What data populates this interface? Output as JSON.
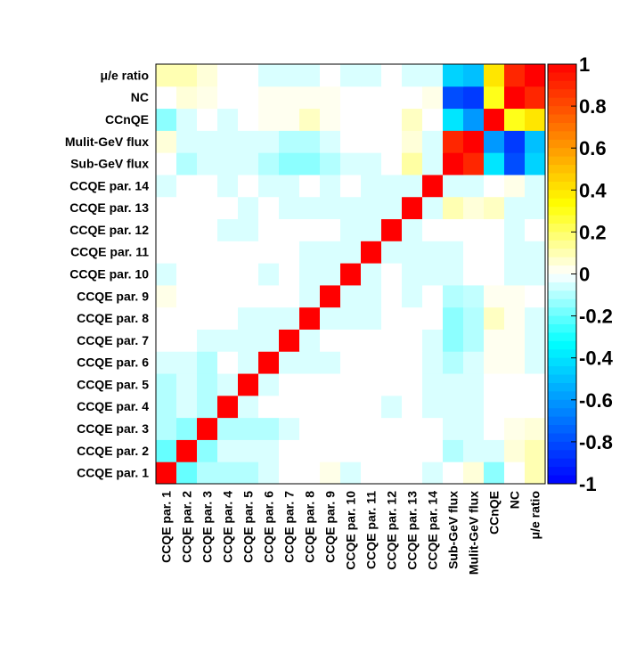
{
  "chart_data": {
    "type": "heatmap",
    "labels": [
      "CCQE par. 1",
      "CCQE par. 2",
      "CCQE par. 3",
      "CCQE par. 4",
      "CCQE par. 5",
      "CCQE par. 6",
      "CCQE par. 7",
      "CCQE par. 8",
      "CCQE par. 9",
      "CCQE par. 10",
      "CCQE par. 11",
      "CCQE par. 12",
      "CCQE par. 13",
      "CCQE par. 14",
      "Sub-GeV flux",
      "Mulit-GeV flux",
      "CCnQE",
      "NC",
      "μ/e ratio"
    ],
    "zlim": [
      -1,
      1
    ],
    "colorbar_ticks": [
      "1",
      "0.8",
      "0.6",
      "0.4",
      "0.2",
      "0",
      "-0.2",
      "-0.4",
      "-0.6",
      "-0.8",
      "-1"
    ],
    "colorscale": [
      "#0000ff",
      "#0080ff",
      "#00ffff",
      "#ffffff",
      "#ffff00",
      "#ff8000",
      "#ff0000"
    ],
    "matrix": [
      [
        1.0,
        -0.2,
        -0.1,
        -0.1,
        -0.1,
        -0.05,
        0,
        0,
        0.03,
        -0.05,
        0,
        0,
        0,
        -0.05,
        0,
        0.05,
        -0.15,
        0,
        0.1
      ],
      [
        -0.2,
        1.0,
        -0.15,
        -0.05,
        -0.05,
        -0.05,
        0,
        0,
        0,
        0,
        0,
        0,
        0,
        0,
        -0.1,
        -0.05,
        -0.05,
        0.05,
        0.1
      ],
      [
        -0.1,
        -0.15,
        1.0,
        -0.1,
        -0.1,
        -0.1,
        -0.05,
        0,
        0,
        0,
        0,
        0,
        0,
        0,
        -0.05,
        -0.05,
        0,
        0.03,
        0.05
      ],
      [
        -0.1,
        -0.05,
        -0.1,
        1.0,
        -0.05,
        0,
        0,
        0,
        0,
        0,
        0,
        -0.05,
        0,
        -0.05,
        -0.05,
        -0.05,
        0,
        0,
        0
      ],
      [
        -0.1,
        -0.05,
        -0.1,
        -0.05,
        1.0,
        -0.05,
        0,
        0,
        0,
        0,
        0,
        0,
        0,
        -0.05,
        -0.05,
        -0.05,
        0,
        0,
        0
      ],
      [
        -0.05,
        -0.05,
        -0.1,
        0,
        -0.05,
        1.0,
        -0.05,
        -0.05,
        -0.05,
        0,
        0,
        0,
        0,
        -0.05,
        -0.1,
        -0.05,
        0.02,
        0.02,
        -0.05
      ],
      [
        0,
        0,
        -0.05,
        -0.05,
        -0.05,
        -0.05,
        1.0,
        -0.05,
        0,
        0,
        0,
        0,
        0,
        -0.05,
        -0.15,
        -0.1,
        0.02,
        0.02,
        -0.05
      ],
      [
        0,
        0,
        0,
        0,
        -0.05,
        -0.05,
        -0.05,
        1.0,
        -0.05,
        -0.05,
        -0.05,
        0,
        0,
        0,
        -0.15,
        -0.1,
        0.08,
        0.02,
        -0.05
      ],
      [
        0.03,
        0,
        0,
        0,
        0,
        0,
        0,
        -0.05,
        1.0,
        -0.05,
        -0.05,
        0,
        -0.05,
        0,
        -0.1,
        -0.08,
        0.02,
        0.02,
        0
      ],
      [
        -0.05,
        0,
        0,
        0,
        0,
        -0.05,
        0,
        -0.05,
        -0.05,
        1.0,
        -0.05,
        0,
        -0.05,
        -0.05,
        -0.05,
        0,
        0,
        -0.05,
        -0.05
      ],
      [
        0,
        0,
        0,
        0,
        0,
        0,
        0,
        -0.05,
        -0.05,
        -0.05,
        1.0,
        -0.05,
        -0.05,
        -0.05,
        -0.05,
        0,
        0,
        -0.05,
        -0.05
      ],
      [
        0,
        0,
        0,
        -0.05,
        -0.05,
        0,
        0,
        0,
        0,
        -0.05,
        -0.05,
        1.0,
        -0.05,
        0,
        0,
        0,
        0,
        -0.05,
        0
      ],
      [
        0,
        0,
        0,
        0,
        -0.05,
        0,
        -0.05,
        -0.05,
        -0.05,
        -0.05,
        -0.05,
        -0.05,
        1.0,
        -0.05,
        0.1,
        0.05,
        0.08,
        -0.05,
        -0.05
      ],
      [
        -0.05,
        0,
        0,
        -0.05,
        0,
        -0.05,
        -0.05,
        0,
        -0.05,
        0,
        -0.05,
        -0.05,
        -0.05,
        1.0,
        -0.05,
        -0.05,
        0,
        0.03,
        -0.05
      ],
      [
        0,
        -0.1,
        -0.05,
        -0.05,
        -0.05,
        -0.1,
        -0.15,
        -0.15,
        -0.1,
        -0.05,
        -0.05,
        0,
        0.12,
        -0.05,
        1.0,
        0.9,
        -0.4,
        -0.8,
        -0.45
      ],
      [
        0.05,
        -0.05,
        -0.05,
        -0.05,
        -0.05,
        -0.05,
        -0.1,
        -0.1,
        -0.05,
        0,
        0,
        0,
        0.05,
        -0.05,
        0.9,
        1.0,
        -0.6,
        -0.85,
        -0.5
      ],
      [
        -0.15,
        -0.05,
        0,
        -0.05,
        0,
        0.02,
        0.02,
        0.08,
        0.02,
        0,
        0,
        0,
        0.08,
        0,
        -0.4,
        -0.6,
        1.0,
        0.3,
        0.4
      ],
      [
        0,
        0.05,
        0.03,
        0,
        0,
        0.02,
        0.02,
        0.02,
        0.02,
        0,
        0,
        0,
        0,
        0.03,
        -0.8,
        -0.85,
        0.3,
        1.0,
        0.9
      ],
      [
        0.1,
        0.1,
        0.05,
        0,
        0,
        -0.05,
        -0.05,
        -0.05,
        0,
        -0.05,
        -0.05,
        0,
        -0.05,
        -0.05,
        -0.45,
        -0.5,
        0.4,
        0.9,
        1.0
      ]
    ]
  }
}
